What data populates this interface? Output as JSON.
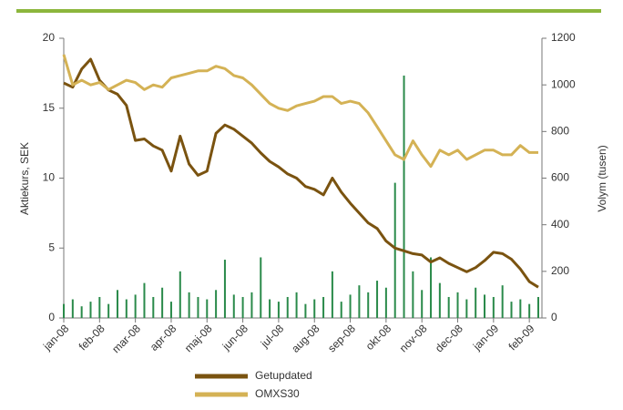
{
  "chart_data": {
    "type": "line",
    "y_label": "Aktiekurs, SEK",
    "y2_label": "Volym (tusen)",
    "categories": [
      "jan-08",
      null,
      null,
      null,
      "feb-08",
      null,
      null,
      null,
      "mar-08",
      null,
      null,
      null,
      "apr-08",
      null,
      null,
      null,
      "maj-08",
      null,
      null,
      null,
      "jun-08",
      null,
      null,
      null,
      "jul-08",
      null,
      null,
      null,
      "aug-08",
      null,
      null,
      null,
      "sep-08",
      null,
      null,
      null,
      "okt-08",
      null,
      null,
      null,
      "nov-08",
      null,
      null,
      null,
      "dec-08",
      null,
      null,
      null,
      "jan-09",
      null,
      null,
      null,
      "feb-09",
      null
    ],
    "ylim": [
      0,
      20
    ],
    "yticks": [
      0,
      5,
      10,
      15,
      20
    ],
    "y2lim": [
      0,
      1200
    ],
    "y2ticks": [
      0,
      200,
      400,
      600,
      800,
      1000,
      1200
    ],
    "series": [
      {
        "type": "bar",
        "axis": "y2",
        "color": "#2a8a4a",
        "values": [
          60,
          80,
          50,
          70,
          90,
          60,
          120,
          80,
          100,
          150,
          90,
          130,
          70,
          200,
          110,
          90,
          80,
          120,
          250,
          100,
          90,
          110,
          260,
          80,
          70,
          90,
          110,
          60,
          80,
          90,
          200,
          70,
          100,
          140,
          110,
          160,
          130,
          580,
          1040,
          200,
          120,
          260,
          150,
          90,
          110,
          80,
          130,
          100,
          90,
          140,
          70,
          80,
          60,
          90
        ]
      },
      {
        "type": "line",
        "name": "Getupdated",
        "color": "#7a5310",
        "values": [
          16.8,
          16.5,
          17.8,
          18.5,
          17.0,
          16.3,
          16.0,
          15.2,
          12.7,
          12.8,
          12.3,
          12.0,
          10.5,
          13.0,
          11.0,
          10.2,
          10.5,
          13.2,
          13.8,
          13.5,
          13.0,
          12.5,
          11.8,
          11.2,
          10.8,
          10.3,
          10.0,
          9.4,
          9.2,
          8.8,
          10.0,
          9.0,
          8.2,
          7.5,
          6.8,
          6.4,
          5.5,
          5.0,
          4.8,
          4.6,
          4.5,
          4.0,
          4.3,
          3.9,
          3.6,
          3.3,
          3.6,
          4.1,
          4.7,
          4.6,
          4.2,
          3.5,
          2.6,
          2.2
        ]
      },
      {
        "type": "line",
        "name": "OMXS30",
        "axis": "y2",
        "color": "#d4b255",
        "values": [
          1130,
          1000,
          1020,
          1000,
          1010,
          980,
          1000,
          1020,
          1010,
          980,
          1000,
          990,
          1030,
          1040,
          1050,
          1060,
          1060,
          1080,
          1070,
          1040,
          1030,
          1000,
          960,
          920,
          900,
          890,
          910,
          920,
          930,
          950,
          950,
          920,
          930,
          920,
          880,
          820,
          760,
          700,
          680,
          760,
          700,
          650,
          720,
          700,
          720,
          680,
          700,
          720,
          720,
          700,
          700,
          740,
          710,
          710
        ]
      }
    ]
  }
}
